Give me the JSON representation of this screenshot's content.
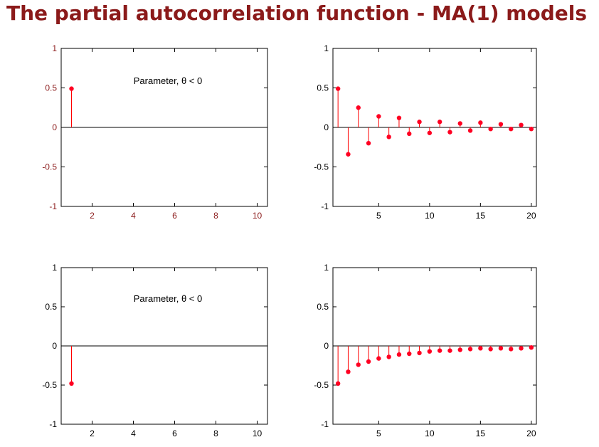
{
  "title": "The partial autocorrelation function - MA(1) models",
  "colors": {
    "title": "#8b1a1a",
    "stem": "#ff0000",
    "marker": "#ff0022",
    "axis_dark_red": "#8b1a1a",
    "axis_black": "#000000"
  },
  "chart_data": [
    {
      "type": "stem",
      "annotation": "Parameter, θ < 0",
      "xlim": [
        0.5,
        10.5
      ],
      "ylim": [
        -1,
        1
      ],
      "xticks": [
        2,
        4,
        6,
        8,
        10
      ],
      "yticks": [
        1,
        0.5,
        0,
        -0.5,
        -1
      ],
      "xtick_labels": [
        "2",
        "4",
        "6",
        "8",
        "10"
      ],
      "ytick_labels": [
        "1",
        "0.5",
        "0",
        "-0.5",
        "-1"
      ],
      "tick_color": "#8b1a1a",
      "x": [
        1
      ],
      "values": [
        0.49
      ]
    },
    {
      "type": "stem",
      "xlim": [
        0.5,
        20.5
      ],
      "ylim": [
        -1,
        1
      ],
      "xticks": [
        5,
        10,
        15,
        20
      ],
      "yticks": [
        1,
        0.5,
        0,
        -0.5,
        -1
      ],
      "xtick_labels": [
        "5",
        "10",
        "15",
        "20"
      ],
      "ytick_labels": [
        "1",
        "0.5",
        "0",
        "-0.5",
        "-1"
      ],
      "tick_color": "#000000",
      "x": [
        1,
        2,
        3,
        4,
        5,
        6,
        7,
        8,
        9,
        10,
        11,
        12,
        13,
        14,
        15,
        16,
        17,
        18,
        19,
        20
      ],
      "values": [
        0.49,
        -0.34,
        0.25,
        -0.2,
        0.14,
        -0.12,
        0.12,
        -0.08,
        0.07,
        -0.07,
        0.07,
        -0.06,
        0.05,
        -0.04,
        0.06,
        -0.02,
        0.04,
        -0.02,
        0.03,
        -0.02
      ]
    },
    {
      "type": "stem",
      "annotation": "Parameter, θ < 0",
      "xlim": [
        0.5,
        10.5
      ],
      "ylim": [
        -1,
        1
      ],
      "xticks": [
        2,
        4,
        6,
        8,
        10
      ],
      "yticks": [
        1,
        0.5,
        0,
        -0.5,
        -1
      ],
      "xtick_labels": [
        "2",
        "4",
        "6",
        "8",
        "10"
      ],
      "ytick_labels": [
        "1",
        "0.5",
        "0",
        "-0.5",
        "-1"
      ],
      "tick_color": "#000000",
      "x": [
        1
      ],
      "values": [
        -0.48
      ]
    },
    {
      "type": "stem",
      "xlim": [
        0.5,
        20.5
      ],
      "ylim": [
        -1,
        1
      ],
      "xticks": [
        5,
        10,
        15,
        20
      ],
      "yticks": [
        1,
        0.5,
        0,
        -0.5,
        -1
      ],
      "xtick_labels": [
        "5",
        "10",
        "15",
        "20"
      ],
      "ytick_labels": [
        "1",
        "0.5",
        "0",
        "-0.5",
        "-1"
      ],
      "tick_color": "#000000",
      "x": [
        1,
        2,
        3,
        4,
        5,
        6,
        7,
        8,
        9,
        10,
        11,
        12,
        13,
        14,
        15,
        16,
        17,
        18,
        19,
        20
      ],
      "values": [
        -0.48,
        -0.33,
        -0.24,
        -0.2,
        -0.16,
        -0.14,
        -0.11,
        -0.1,
        -0.09,
        -0.07,
        -0.06,
        -0.06,
        -0.05,
        -0.04,
        -0.03,
        -0.04,
        -0.03,
        -0.04,
        -0.03,
        -0.02
      ]
    }
  ]
}
